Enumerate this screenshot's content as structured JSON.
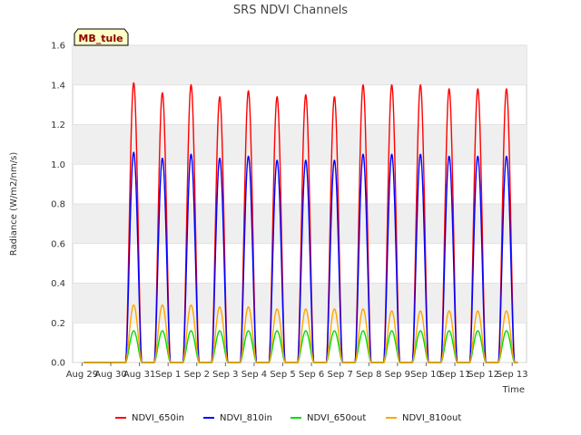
{
  "chart_data": {
    "type": "line",
    "title": "SRS NDVI Channels",
    "xlabel": "Time",
    "ylabel": "Radiance (W/m2/nm/s)",
    "ylim": [
      0,
      1.6
    ],
    "yticks": [
      "0.0",
      "0.2",
      "0.4",
      "0.6",
      "0.8",
      "1.0",
      "1.2",
      "1.4",
      "1.6"
    ],
    "xticks": [
      "Aug 29",
      "Aug 30",
      "Aug 31",
      "Sep 1",
      "Sep 2",
      "Sep 3",
      "Sep 4",
      "Sep 5",
      "Sep 6",
      "Sep 7",
      "Sep 8",
      "Sep 9",
      "Sep 10",
      "Sep 11",
      "Sep 12",
      "Sep 13"
    ],
    "station_label": "MB_tule",
    "grid": "horizontal bands",
    "legend_position": "bottom",
    "daily_peak_x": [
      0.6,
      1.6,
      2.6,
      3.6,
      4.6,
      5.6,
      6.6,
      7.6,
      8.6,
      9.6,
      10.6,
      11.6,
      12.6,
      13.6,
      14.6
    ],
    "x_units": "days after Aug 29",
    "series": [
      {
        "name": "NDVI_650in",
        "color": "#ff0000",
        "daily_peaks": [
          1.41,
          1.36,
          1.4,
          1.34,
          1.37,
          1.34,
          1.35,
          1.34,
          1.4,
          1.4,
          1.4,
          1.38,
          1.38,
          1.38
        ]
      },
      {
        "name": "NDVI_810in",
        "color": "#0000ff",
        "daily_peaks": [
          1.06,
          1.03,
          1.05,
          1.03,
          1.04,
          1.02,
          1.02,
          1.02,
          1.05,
          1.05,
          1.05,
          1.04,
          1.04,
          1.04
        ]
      },
      {
        "name": "NDVI_650out",
        "color": "#00dd00",
        "daily_peaks": [
          0.16,
          0.16,
          0.16,
          0.16,
          0.16,
          0.16,
          0.16,
          0.16,
          0.16,
          0.16,
          0.16,
          0.16,
          0.16,
          0.16
        ]
      },
      {
        "name": "NDVI_810out",
        "color": "#ffa500",
        "daily_peaks": [
          0.29,
          0.29,
          0.29,
          0.28,
          0.28,
          0.27,
          0.27,
          0.27,
          0.27,
          0.26,
          0.26,
          0.26,
          0.26,
          0.26
        ]
      }
    ],
    "peak_x": [
      1.8,
      2.8,
      3.8,
      4.8,
      5.8,
      6.8,
      7.8,
      8.8,
      9.8,
      10.8,
      11.8,
      12.8,
      13.8,
      14.8
    ]
  }
}
